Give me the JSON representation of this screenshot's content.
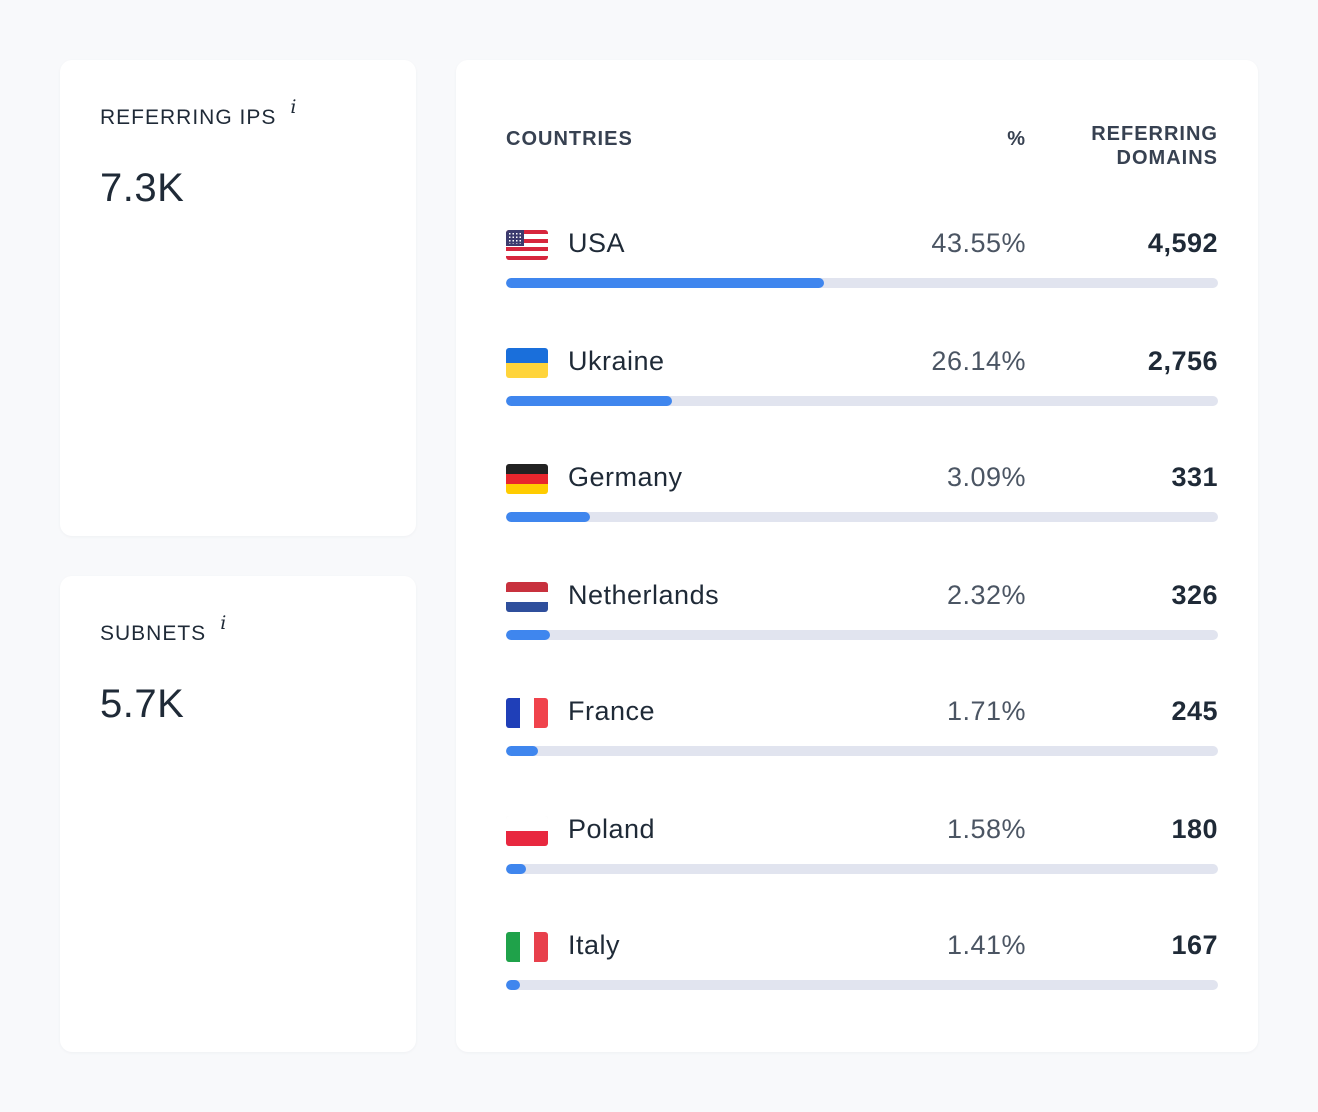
{
  "stats": {
    "referring_ips": {
      "label": "REFERRING IPS",
      "value": "7.3K",
      "info_icon": "info-icon"
    },
    "subnets": {
      "label": "SUBNETS",
      "value": "5.7K",
      "info_icon": "info-icon"
    }
  },
  "countries_table": {
    "headers": {
      "country": "COUNTRIES",
      "percent": "%",
      "domains_line1": "REFERRING",
      "domains_line2": "DOMAINS"
    },
    "bar_color": "#3f86ee",
    "track_color": "#e1e4ef",
    "rows": [
      {
        "country": "USA",
        "flag": "usa-flag-icon",
        "percent": "43.55%",
        "domains": "4,592",
        "bar_fraction": 0.447
      },
      {
        "country": "Ukraine",
        "flag": "ukraine-flag-icon",
        "percent": "26.14%",
        "domains": "2,756",
        "bar_fraction": 0.233
      },
      {
        "country": "Germany",
        "flag": "germany-flag-icon",
        "percent": "3.09%",
        "domains": "331",
        "bar_fraction": 0.118
      },
      {
        "country": "Netherlands",
        "flag": "netherlands-flag-icon",
        "percent": "2.32%",
        "domains": "326",
        "bar_fraction": 0.062
      },
      {
        "country": "France",
        "flag": "france-flag-icon",
        "percent": "1.71%",
        "domains": "245",
        "bar_fraction": 0.045
      },
      {
        "country": "Poland",
        "flag": "poland-flag-icon",
        "percent": "1.58%",
        "domains": "180",
        "bar_fraction": 0.028
      },
      {
        "country": "Italy",
        "flag": "italy-flag-icon",
        "percent": "1.41%",
        "domains": "167",
        "bar_fraction": 0.02
      }
    ]
  }
}
